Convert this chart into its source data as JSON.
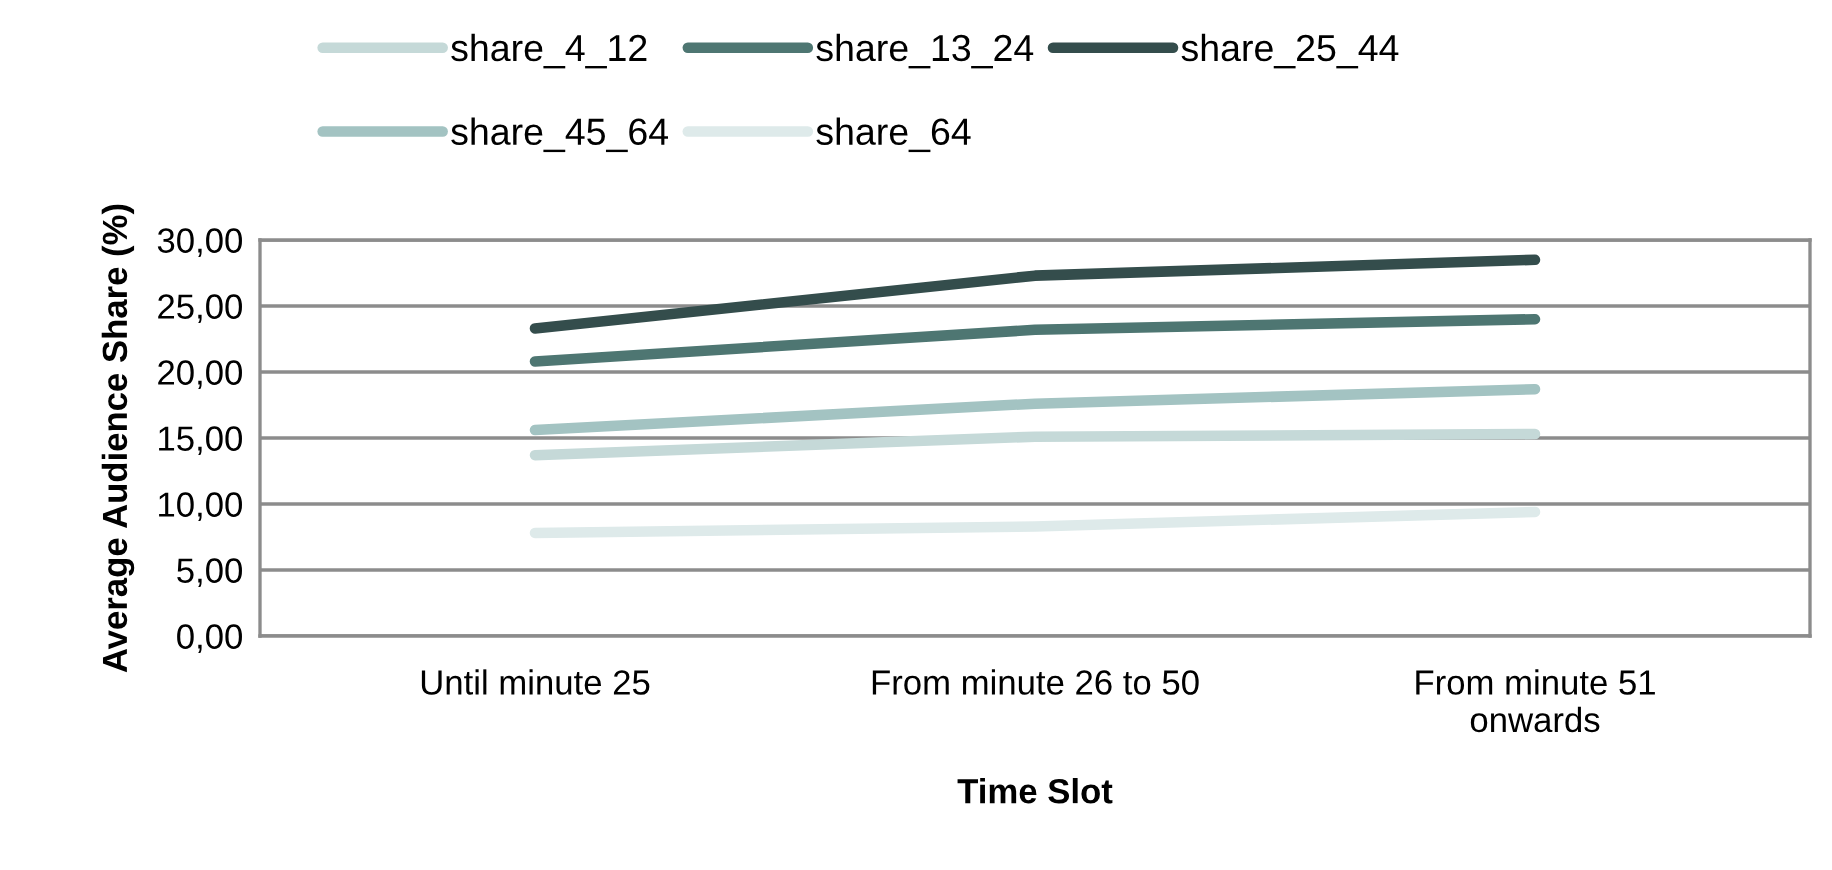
{
  "chart_data": {
    "type": "line",
    "xlabel": "Time Slot",
    "ylabel": "Average Audience Share (%)",
    "categories": [
      "Until minute 25",
      "From minute 26 to 50",
      "From minute 51\nonwards"
    ],
    "series": [
      {
        "name": "share_4_12",
        "color": "#c5d9d8",
        "values": [
          13.7,
          15.1,
          15.3
        ]
      },
      {
        "name": "share_13_24",
        "color": "#4e7672",
        "values": [
          20.8,
          23.2,
          24.0
        ]
      },
      {
        "name": "share_25_44",
        "color": "#344d4c",
        "values": [
          23.3,
          27.3,
          28.5
        ]
      },
      {
        "name": "share_45_64",
        "color": "#a3c3c2",
        "values": [
          15.6,
          17.6,
          18.7
        ]
      },
      {
        "name": "share_64",
        "color": "#deeaea",
        "values": [
          7.8,
          8.3,
          9.4
        ]
      }
    ],
    "ylim": [
      0,
      30
    ],
    "yticks": [
      {
        "value": 0,
        "label": "0,00"
      },
      {
        "value": 5,
        "label": "5,00"
      },
      {
        "value": 10,
        "label": "10,00"
      },
      {
        "value": 15,
        "label": "15,00"
      },
      {
        "value": 20,
        "label": "20,00"
      },
      {
        "value": 25,
        "label": "25,00"
      },
      {
        "value": 30,
        "label": "30,00"
      }
    ],
    "grid": "y",
    "legend": "top",
    "line_style": "solid"
  }
}
